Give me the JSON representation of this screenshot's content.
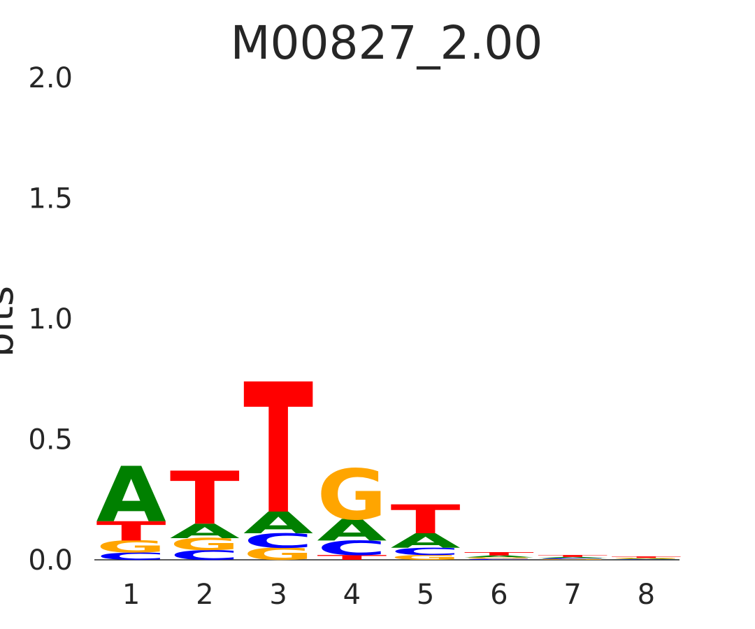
{
  "chart_data": {
    "type": "sequence-logo",
    "title": "M00827_2.00",
    "ylabel": "bits",
    "ylim": [
      0,
      2.0
    ],
    "yticks": [
      "0.0",
      "0.5",
      "1.0",
      "1.5",
      "2.0"
    ],
    "ytick_values": [
      0.0,
      0.5,
      1.0,
      1.5,
      2.0
    ],
    "positions": [
      "1",
      "2",
      "3",
      "4",
      "5",
      "6",
      "7",
      "8"
    ],
    "colors": {
      "A": "#008000",
      "C": "#0000ff",
      "G": "#ffa500",
      "T": "#ff0000"
    },
    "stacks": [
      [
        {
          "base": "C",
          "bits": 0.03
        },
        {
          "base": "G",
          "bits": 0.05
        },
        {
          "base": "T",
          "bits": 0.08
        },
        {
          "base": "A",
          "bits": 0.23
        }
      ],
      [
        {
          "base": "C",
          "bits": 0.04
        },
        {
          "base": "G",
          "bits": 0.05
        },
        {
          "base": "A",
          "bits": 0.06
        },
        {
          "base": "T",
          "bits": 0.22
        }
      ],
      [
        {
          "base": "G",
          "bits": 0.05
        },
        {
          "base": "C",
          "bits": 0.06
        },
        {
          "base": "A",
          "bits": 0.09
        },
        {
          "base": "T",
          "bits": 0.54
        }
      ],
      [
        {
          "base": "T",
          "bits": 0.02
        },
        {
          "base": "C",
          "bits": 0.06
        },
        {
          "base": "A",
          "bits": 0.09
        },
        {
          "base": "G",
          "bits": 0.21
        }
      ],
      [
        {
          "base": "G",
          "bits": 0.02
        },
        {
          "base": "C",
          "bits": 0.03
        },
        {
          "base": "A",
          "bits": 0.06
        },
        {
          "base": "T",
          "bits": 0.12
        }
      ],
      [
        {
          "base": "C",
          "bits": 0.004
        },
        {
          "base": "G",
          "bits": 0.006
        },
        {
          "base": "A",
          "bits": 0.008
        },
        {
          "base": "T",
          "bits": 0.014
        }
      ],
      [
        {
          "base": "G",
          "bits": 0.003
        },
        {
          "base": "C",
          "bits": 0.004
        },
        {
          "base": "A",
          "bits": 0.005
        },
        {
          "base": "T",
          "bits": 0.008
        }
      ],
      [
        {
          "base": "C",
          "bits": 0.002
        },
        {
          "base": "A",
          "bits": 0.003
        },
        {
          "base": "G",
          "bits": 0.003
        },
        {
          "base": "T",
          "bits": 0.006
        }
      ]
    ]
  }
}
